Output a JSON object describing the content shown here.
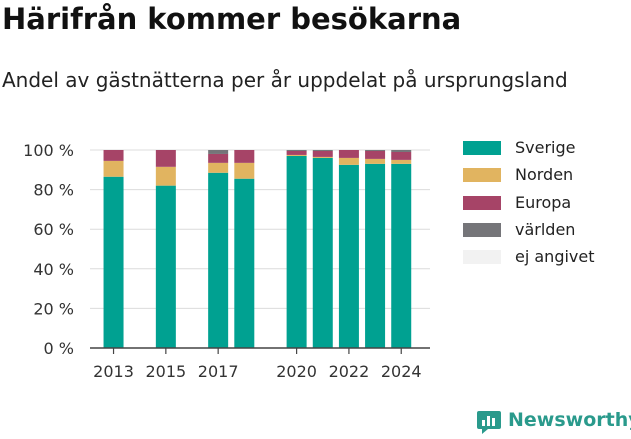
{
  "chart_data": {
    "type": "bar",
    "stacked": true,
    "title": "Härifrån kommer besökarna",
    "subtitle": "Andel av gästnätterna per år uppdelat på ursprungsland",
    "x": [
      2013,
      2015,
      2017,
      2018,
      2020,
      2021,
      2022,
      2023,
      2024
    ],
    "x_ticks": [
      2013,
      2015,
      2017,
      2020,
      2022,
      2024
    ],
    "x_tick_labels": [
      "2013",
      "2015",
      "2017",
      "2020",
      "2022",
      "2024"
    ],
    "y_ticks": [
      0,
      20,
      40,
      60,
      80,
      100
    ],
    "y_tick_labels": [
      "0 %",
      "20 %",
      "40 %",
      "60 %",
      "80 %",
      "100 %"
    ],
    "ylim": [
      0,
      100
    ],
    "grid": true,
    "legend_position": "right",
    "series": [
      {
        "name": "Sverige",
        "color": "#00a191",
        "values": [
          86.5,
          82.0,
          88.5,
          85.5,
          97.0,
          96.0,
          92.5,
          93.0,
          93.0
        ]
      },
      {
        "name": "Norden",
        "color": "#e1b460",
        "values": [
          8.0,
          9.5,
          5.0,
          8.0,
          0.5,
          0.5,
          3.5,
          2.5,
          2.0
        ]
      },
      {
        "name": "Europa",
        "color": "#a64467",
        "values": [
          5.5,
          8.5,
          4.5,
          6.5,
          2.0,
          3.0,
          4.0,
          4.0,
          4.0
        ]
      },
      {
        "name": "världen",
        "color": "#757579",
        "values": [
          0.0,
          0.0,
          2.0,
          0.0,
          0.5,
          0.5,
          0.0,
          0.5,
          1.0
        ]
      },
      {
        "name": "ej angivet",
        "color": "#f2f2f2",
        "values": [
          0.0,
          0.0,
          0.0,
          0.0,
          0.0,
          0.0,
          0.0,
          0.0,
          0.0
        ]
      }
    ]
  },
  "brand": {
    "name": "Newsworthy",
    "icon": "newsworthy-logo-icon",
    "color": "#2a9a8c"
  }
}
